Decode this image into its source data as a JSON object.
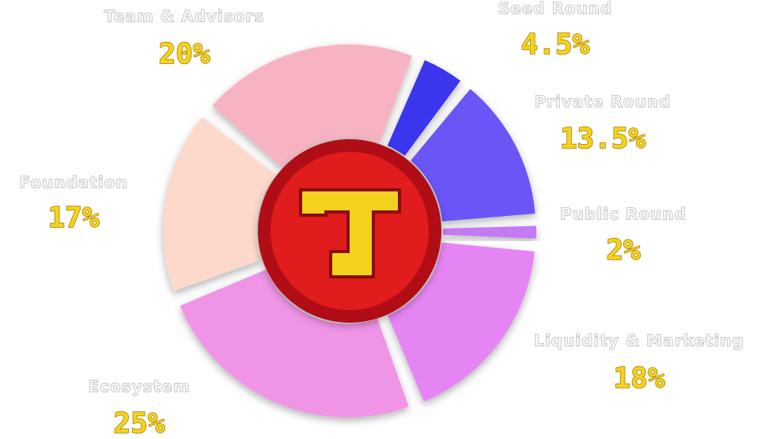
{
  "chart_data": {
    "type": "pie",
    "categories": [
      "Seed Round",
      "Private Round",
      "Public Round",
      "Liquidity & Marketing",
      "Ecosystem",
      "Foundation",
      "Team & Advisors"
    ],
    "values": [
      4.5,
      13.5,
      2,
      18,
      25,
      17,
      20
    ],
    "value_labels": [
      "4.5%",
      "13.5%",
      "2%",
      "18%",
      "25%",
      "17%",
      "20%"
    ],
    "colors": [
      "#3b35ee",
      "#6a55f6",
      "#c47af2",
      "#e585f4",
      "#f094e6",
      "#fcd9ca",
      "#f8b3c2"
    ]
  }
}
